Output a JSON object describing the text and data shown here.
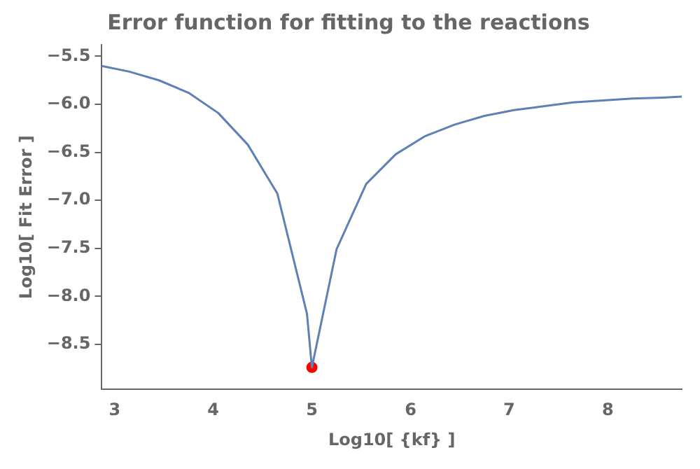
{
  "chart_data": {
    "type": "line",
    "title": "Error function for fitting to the reactions",
    "xlabel": "Log10[ {kf} ]",
    "ylabel": "Log10[ Fit Error ]",
    "xlim": [
      2.87,
      8.75
    ],
    "xticks": [
      3,
      4,
      5,
      6,
      7,
      8
    ],
    "ylim": [
      -8.97,
      -5.38
    ],
    "yticks": [
      {
        "value": -5.5,
        "label": "−5.5"
      },
      {
        "value": -6,
        "label": "−6.0"
      },
      {
        "value": -6.5,
        "label": "−6.5"
      },
      {
        "value": -7,
        "label": "−7.0"
      },
      {
        "value": -7.5,
        "label": "−7.5"
      },
      {
        "value": -8,
        "label": "−8.0"
      },
      {
        "value": -8.5,
        "label": "−8.5"
      }
    ],
    "grid": false,
    "legend": false,
    "series": [
      {
        "type": "line",
        "color": "#5e81b5",
        "marker": "none",
        "x": [
          2.87,
          3.15,
          3.45,
          3.75,
          4.05,
          4.35,
          4.65,
          4.95,
          5.0,
          5.25,
          5.55,
          5.85,
          6.15,
          6.45,
          6.75,
          7.05,
          7.35,
          7.65,
          7.95,
          8.25,
          8.55,
          8.75
        ],
        "values": [
          -5.6,
          -5.66,
          -5.75,
          -5.88,
          -6.09,
          -6.42,
          -6.93,
          -8.18,
          -8.74,
          -7.51,
          -6.83,
          -6.52,
          -6.33,
          -6.21,
          -6.12,
          -6.06,
          -6.02,
          -5.98,
          -5.96,
          -5.94,
          -5.93,
          -5.92
        ]
      },
      {
        "type": "scatter",
        "color": "#ff0000",
        "marker": "circle",
        "x": [
          5.0
        ],
        "values": [
          -8.74
        ]
      }
    ]
  }
}
